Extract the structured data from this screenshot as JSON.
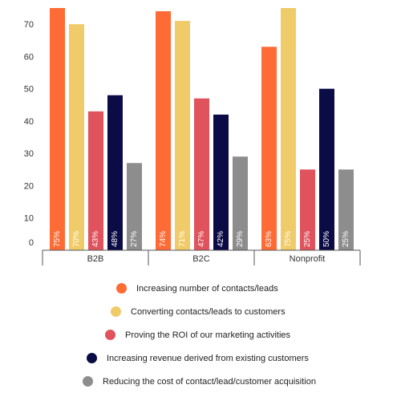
{
  "chart_data": {
    "type": "bar",
    "categories": [
      "B2B",
      "B2C",
      "Nonprofit"
    ],
    "y_ticks": [
      0,
      10,
      20,
      30,
      40,
      50,
      60,
      70
    ],
    "ylim": [
      0,
      75
    ],
    "grid": false,
    "legend_position": "bottom",
    "series": [
      {
        "name": "Increasing number of contacts/leads",
        "color": "#ff6b35",
        "values": [
          75,
          74,
          63
        ],
        "labels": [
          "75%",
          "74%",
          "63%"
        ]
      },
      {
        "name": "Converting contacts/leads to customers",
        "color": "#f0cb69",
        "values": [
          70,
          71,
          75
        ],
        "labels": [
          "70%",
          "71%",
          "75%"
        ]
      },
      {
        "name": "Proving the ROI of our marketing activities",
        "color": "#e0525c",
        "values": [
          43,
          47,
          25
        ],
        "labels": [
          "43%",
          "47%",
          "25%"
        ]
      },
      {
        "name": "Increasing revenue derived from existing customers",
        "color": "#0b0b45",
        "values": [
          48,
          42,
          50
        ],
        "labels": [
          "48%",
          "42%",
          "50%"
        ]
      },
      {
        "name": "Reducing the cost of contact/lead/customer acquisition",
        "color": "#8d8d8d",
        "values": [
          27,
          29,
          25
        ],
        "labels": [
          "27%",
          "29%",
          "25%"
        ]
      }
    ]
  }
}
